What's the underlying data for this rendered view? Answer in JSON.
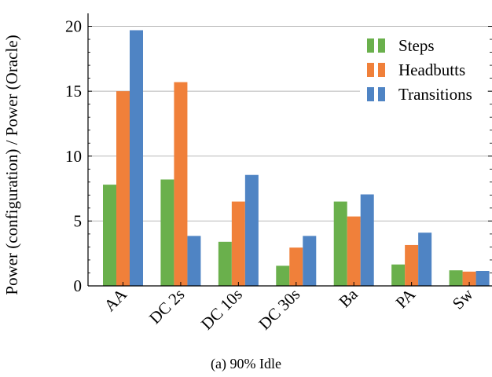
{
  "chart_data": {
    "type": "bar",
    "categories": [
      "AA",
      "DC 2s",
      "DC 10s",
      "DC 30s",
      "Ba",
      "PA",
      "Sw"
    ],
    "series": [
      {
        "name": "Steps",
        "color": "#6ab04c",
        "values": [
          7.8,
          8.2,
          3.4,
          1.55,
          6.5,
          1.65,
          1.2
        ]
      },
      {
        "name": "Headbutts",
        "color": "#f0803a",
        "values": [
          15.0,
          15.7,
          6.5,
          2.95,
          5.35,
          3.15,
          1.1
        ]
      },
      {
        "name": "Transitions",
        "color": "#4f84c4",
        "values": [
          19.7,
          3.85,
          8.55,
          3.85,
          7.05,
          4.1,
          1.15
        ]
      }
    ],
    "ylabel": "Power (configuration) / Power (Oracle)",
    "xlabel": "",
    "ylim": [
      0,
      21
    ],
    "yticks": [
      0,
      5,
      10,
      15,
      20
    ],
    "grid": "horizontal",
    "legend_position": "top-right",
    "caption": "(a) 90% Idle"
  }
}
